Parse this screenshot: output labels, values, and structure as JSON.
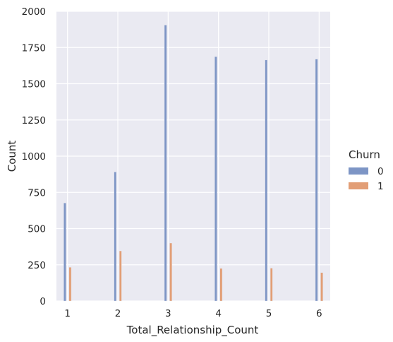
{
  "chart_data": {
    "type": "bar",
    "xlabel": "Total_Relationship_Count",
    "ylabel": "Count",
    "x": [
      1,
      2,
      3,
      4,
      5,
      6
    ],
    "x_ticks": [
      "1",
      "2",
      "3",
      "4",
      "5",
      "6"
    ],
    "ylim": [
      0,
      2000
    ],
    "y_ticks": [
      "0",
      "250",
      "500",
      "750",
      "1000",
      "1250",
      "1500",
      "1750",
      "2000"
    ],
    "grid": true,
    "legend": {
      "title": "Churn",
      "placement": "right"
    },
    "series": [
      {
        "name": "0",
        "color": "#7d95c5",
        "values": [
          677,
          891,
          1905,
          1687,
          1664,
          1670
        ]
      },
      {
        "name": "1",
        "color": "#e29e76",
        "values": [
          233,
          346,
          400,
          225,
          227,
          196
        ]
      }
    ]
  }
}
